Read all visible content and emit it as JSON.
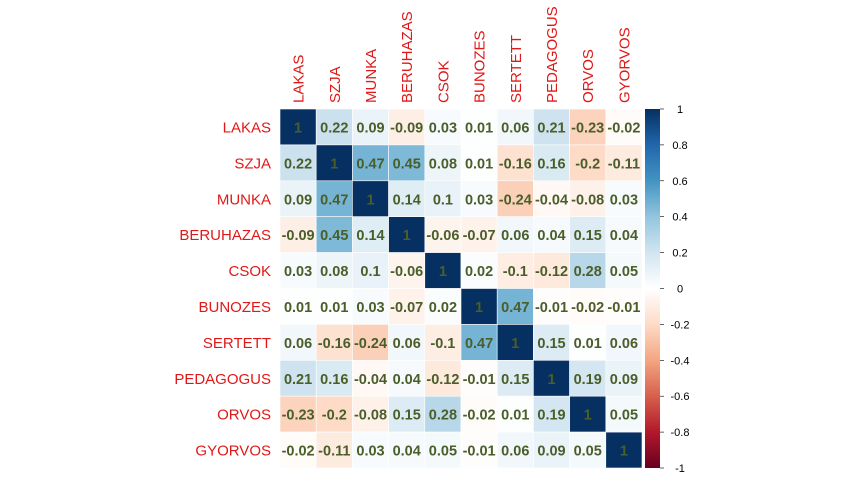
{
  "chart_data": {
    "type": "heatmap",
    "variables": [
      "LAKAS",
      "SZJA",
      "MUNKA",
      "BERUHAZAS",
      "CSOK",
      "BUNOZES",
      "SERTETT",
      "PEDAGOGUS",
      "ORVOS",
      "GYORVOS"
    ],
    "matrix": [
      [
        1,
        0.22,
        0.09,
        -0.09,
        0.03,
        0.01,
        0.06,
        0.21,
        -0.23,
        -0.02
      ],
      [
        0.22,
        1,
        0.47,
        0.45,
        0.08,
        0.01,
        -0.16,
        0.16,
        -0.2,
        -0.11
      ],
      [
        0.09,
        0.47,
        1,
        0.14,
        0.1,
        0.03,
        -0.24,
        -0.04,
        -0.08,
        0.03
      ],
      [
        -0.09,
        0.45,
        0.14,
        1,
        -0.06,
        -0.07,
        0.06,
        0.04,
        0.15,
        0.04
      ],
      [
        0.03,
        0.08,
        0.1,
        -0.06,
        1,
        0.02,
        -0.1,
        -0.12,
        0.28,
        0.05
      ],
      [
        0.01,
        0.01,
        0.03,
        -0.07,
        0.02,
        1,
        0.47,
        -0.01,
        -0.02,
        -0.01
      ],
      [
        0.06,
        -0.16,
        -0.24,
        0.06,
        -0.1,
        0.47,
        1,
        0.15,
        0.01,
        0.06
      ],
      [
        0.21,
        0.16,
        -0.04,
        0.04,
        -0.12,
        -0.01,
        0.15,
        1,
        0.19,
        0.09
      ],
      [
        -0.23,
        -0.2,
        -0.08,
        0.15,
        0.28,
        -0.02,
        0.01,
        0.19,
        1,
        0.05
      ],
      [
        -0.02,
        -0.11,
        0.03,
        0.04,
        0.05,
        -0.01,
        0.06,
        0.09,
        0.05,
        1
      ]
    ],
    "color_scale": {
      "range": [
        -1,
        1
      ],
      "ticks": [
        "1",
        "0.8",
        "0.6",
        "0.4",
        "0.2",
        "0",
        "-0.2",
        "-0.4",
        "-0.6",
        "-0.8",
        "-1"
      ],
      "colors": [
        "#67001F",
        "#B2182B",
        "#D6604D",
        "#F4A582",
        "#FDDBC7",
        "#FFFFFF",
        "#D1E5F0",
        "#92C5DE",
        "#4393C3",
        "#2166AC",
        "#053061"
      ]
    },
    "label_color": "#e01818",
    "value_color": "#4a5e2a",
    "legend_position": "right"
  }
}
